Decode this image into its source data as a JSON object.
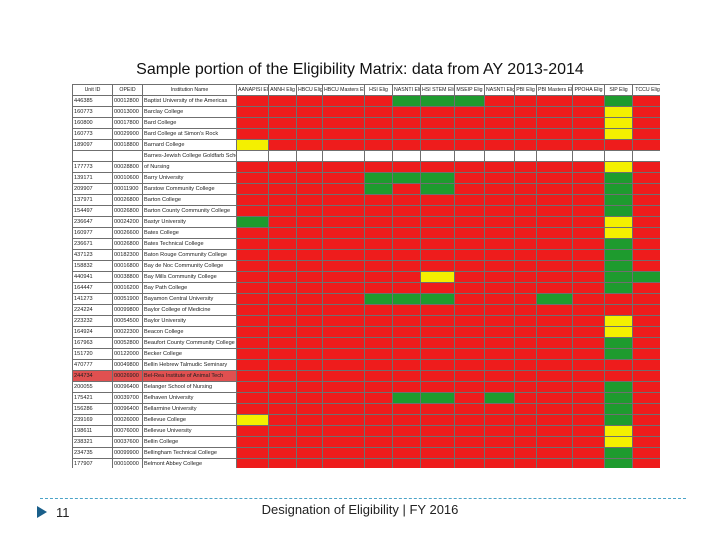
{
  "title": "Sample portion of the Eligibility Matrix:  data from AY 2013-2014",
  "footer": {
    "page_number": "11",
    "text": "Designation of Eligibility | FY 2016"
  },
  "colors": {
    "red": "#ee1c1c",
    "green": "#1e9b2e",
    "yellow": "#f4f000",
    "highlight_row": "#e05050"
  },
  "icons": {
    "footer_marker": "triangle-arrow-icon"
  },
  "matrix": {
    "headers": [
      "Unit ID",
      "OPEID",
      "Institution Name",
      "AANAPISI Elig",
      "ANNH Elig",
      "HBCU Elig",
      "HBCU Masters Elig",
      "HSI Elig",
      "NASNTI Elig",
      "HSI STEM Elig",
      "MSEIP Elig",
      "NASNTI Elig",
      "PBI Elig",
      "PBI Masters Elig",
      "PPOHA Elig",
      "SIP Elig",
      "TCCU Elig"
    ],
    "rows": [
      {
        "unit": "446385",
        "opeid": "00012800",
        "name": "Baptist University of the Americas",
        "cells": [
          "r",
          "r",
          "r",
          "r",
          "r",
          "g",
          "g",
          "g",
          "r",
          "r",
          "r",
          "r",
          "g",
          "r"
        ]
      },
      {
        "unit": "160773",
        "opeid": "00013000",
        "name": "Barclay College",
        "cells": [
          "r",
          "r",
          "r",
          "r",
          "r",
          "r",
          "r",
          "r",
          "r",
          "r",
          "r",
          "r",
          "y",
          "r"
        ]
      },
      {
        "unit": "160800",
        "opeid": "00017800",
        "name": "Bard College",
        "cells": [
          "r",
          "r",
          "r",
          "r",
          "r",
          "r",
          "r",
          "r",
          "r",
          "r",
          "r",
          "r",
          "y",
          "r"
        ]
      },
      {
        "unit": "160773",
        "opeid": "00029900",
        "name": "Bard College at Simon's Rock",
        "cells": [
          "r",
          "r",
          "r",
          "r",
          "r",
          "r",
          "r",
          "r",
          "r",
          "r",
          "r",
          "r",
          "y",
          "r"
        ]
      },
      {
        "unit": "189097",
        "opeid": "00018800",
        "name": "Barnard College",
        "cells": [
          "y",
          "r",
          "r",
          "r",
          "r",
          "r",
          "r",
          "r",
          "r",
          "r",
          "r",
          "r",
          "r",
          "r"
        ]
      },
      {
        "unit": "",
        "opeid": "",
        "name": "Barnes-Jewish College Goldfarb School",
        "cells": [
          "w",
          "w",
          "w",
          "w",
          "w",
          "w",
          "w",
          "w",
          "w",
          "w",
          "w",
          "w",
          "w",
          "w"
        ]
      },
      {
        "unit": "177773",
        "opeid": "00028800",
        "name": "of Nursing",
        "cells": [
          "r",
          "r",
          "r",
          "r",
          "r",
          "r",
          "r",
          "r",
          "r",
          "r",
          "r",
          "r",
          "y",
          "r"
        ]
      },
      {
        "unit": "139171",
        "opeid": "00010600",
        "name": "Barry University",
        "cells": [
          "r",
          "r",
          "r",
          "r",
          "g",
          "g",
          "g",
          "r",
          "r",
          "r",
          "r",
          "r",
          "g",
          "r"
        ]
      },
      {
        "unit": "209907",
        "opeid": "00011900",
        "name": "Barstow Community College",
        "cells": [
          "r",
          "r",
          "r",
          "r",
          "g",
          "r",
          "g",
          "r",
          "r",
          "r",
          "r",
          "r",
          "g",
          "r"
        ]
      },
      {
        "unit": "137971",
        "opeid": "00026800",
        "name": "Barton College",
        "cells": [
          "r",
          "r",
          "r",
          "r",
          "r",
          "r",
          "r",
          "r",
          "r",
          "r",
          "r",
          "r",
          "g",
          "r"
        ]
      },
      {
        "unit": "154497",
        "opeid": "00026800",
        "name": "Barton County Community College",
        "cells": [
          "r",
          "r",
          "r",
          "r",
          "r",
          "r",
          "r",
          "r",
          "r",
          "r",
          "r",
          "r",
          "g",
          "r"
        ]
      },
      {
        "unit": "236647",
        "opeid": "00024200",
        "name": "Bastyr University",
        "cells": [
          "g",
          "r",
          "r",
          "r",
          "r",
          "r",
          "r",
          "r",
          "r",
          "r",
          "r",
          "r",
          "y",
          "r"
        ]
      },
      {
        "unit": "160977",
        "opeid": "00026600",
        "name": "Bates College",
        "cells": [
          "r",
          "r",
          "r",
          "r",
          "r",
          "r",
          "r",
          "r",
          "r",
          "r",
          "r",
          "r",
          "y",
          "r"
        ]
      },
      {
        "unit": "236671",
        "opeid": "00026800",
        "name": "Bates Technical College",
        "cells": [
          "r",
          "r",
          "r",
          "r",
          "r",
          "r",
          "r",
          "r",
          "r",
          "r",
          "r",
          "r",
          "g",
          "r"
        ]
      },
      {
        "unit": "437123",
        "opeid": "00182300",
        "name": "Baton Rouge Community College",
        "cells": [
          "r",
          "r",
          "r",
          "r",
          "r",
          "r",
          "r",
          "r",
          "r",
          "r",
          "r",
          "r",
          "g",
          "r"
        ]
      },
      {
        "unit": "158832",
        "opeid": "00016800",
        "name": "Bay de Noc Community College",
        "cells": [
          "r",
          "r",
          "r",
          "r",
          "r",
          "r",
          "r",
          "r",
          "r",
          "r",
          "r",
          "r",
          "g",
          "r"
        ]
      },
      {
        "unit": "440941",
        "opeid": "00038800",
        "name": "Bay Mills Community College",
        "cells": [
          "r",
          "r",
          "r",
          "r",
          "r",
          "r",
          "y",
          "r",
          "r",
          "r",
          "r",
          "r",
          "g",
          "g"
        ]
      },
      {
        "unit": "164447",
        "opeid": "00016200",
        "name": "Bay Path College",
        "cells": [
          "r",
          "r",
          "r",
          "r",
          "r",
          "r",
          "r",
          "r",
          "r",
          "r",
          "r",
          "r",
          "g",
          "r"
        ]
      },
      {
        "unit": "141273",
        "opeid": "00051900",
        "name": "Bayamon Central University",
        "cells": [
          "r",
          "r",
          "r",
          "r",
          "g",
          "g",
          "g",
          "r",
          "r",
          "r",
          "g",
          "r",
          "r",
          "r"
        ]
      },
      {
        "unit": "224224",
        "opeid": "00099800",
        "name": "Baylor College of Medicine",
        "cells": [
          "r",
          "r",
          "r",
          "r",
          "r",
          "r",
          "r",
          "r",
          "r",
          "r",
          "r",
          "r",
          "r",
          "r"
        ]
      },
      {
        "unit": "223232",
        "opeid": "00054500",
        "name": "Baylor University",
        "cells": [
          "r",
          "r",
          "r",
          "r",
          "r",
          "r",
          "r",
          "r",
          "r",
          "r",
          "r",
          "r",
          "y",
          "r"
        ]
      },
      {
        "unit": "164924",
        "opeid": "00022300",
        "name": "Beacon College",
        "cells": [
          "r",
          "r",
          "r",
          "r",
          "r",
          "r",
          "r",
          "r",
          "r",
          "r",
          "r",
          "r",
          "y",
          "r"
        ]
      },
      {
        "unit": "167963",
        "opeid": "00052800",
        "name": "Beaufort County Community College",
        "cells": [
          "r",
          "r",
          "r",
          "r",
          "r",
          "r",
          "r",
          "r",
          "r",
          "r",
          "r",
          "r",
          "g",
          "r"
        ]
      },
      {
        "unit": "151720",
        "opeid": "00122000",
        "name": "Becker College",
        "cells": [
          "r",
          "r",
          "r",
          "r",
          "r",
          "r",
          "r",
          "r",
          "r",
          "r",
          "r",
          "r",
          "g",
          "r"
        ]
      },
      {
        "unit": "470777",
        "opeid": "00049800",
        "name": "Bellin Hebrew Talmudic Seminary",
        "cells": [
          "r",
          "r",
          "r",
          "r",
          "r",
          "r",
          "r",
          "r",
          "r",
          "r",
          "r",
          "r",
          "r",
          "r"
        ]
      },
      {
        "unit": "244734",
        "opeid": "00026900",
        "name": "Bel-Rea Institute of Animal Tech",
        "hl": true,
        "cells": [
          "r",
          "r",
          "r",
          "r",
          "r",
          "r",
          "r",
          "r",
          "r",
          "r",
          "r",
          "r",
          "r",
          "r"
        ]
      },
      {
        "unit": "200055",
        "opeid": "00096400",
        "name": "Belanger School of Nursing",
        "cells": [
          "r",
          "r",
          "r",
          "r",
          "r",
          "r",
          "r",
          "r",
          "r",
          "r",
          "r",
          "r",
          "g",
          "r"
        ]
      },
      {
        "unit": "175421",
        "opeid": "00039700",
        "name": "Belhaven University",
        "cells": [
          "r",
          "r",
          "r",
          "r",
          "r",
          "g",
          "g",
          "r",
          "g",
          "r",
          "r",
          "r",
          "g",
          "r"
        ]
      },
      {
        "unit": "156286",
        "opeid": "00096400",
        "name": "Bellarmine University",
        "cells": [
          "r",
          "r",
          "r",
          "r",
          "r",
          "r",
          "r",
          "r",
          "r",
          "r",
          "r",
          "r",
          "g",
          "r"
        ]
      },
      {
        "unit": "239169",
        "opeid": "00026000",
        "name": "Bellevue College",
        "cells": [
          "y",
          "r",
          "r",
          "r",
          "r",
          "r",
          "r",
          "r",
          "r",
          "r",
          "r",
          "r",
          "g",
          "r"
        ]
      },
      {
        "unit": "198611",
        "opeid": "00076000",
        "name": "Bellevue University",
        "cells": [
          "r",
          "r",
          "r",
          "r",
          "r",
          "r",
          "r",
          "r",
          "r",
          "r",
          "r",
          "r",
          "y",
          "r"
        ]
      },
      {
        "unit": "238321",
        "opeid": "00037600",
        "name": "Bellin College",
        "cells": [
          "r",
          "r",
          "r",
          "r",
          "r",
          "r",
          "r",
          "r",
          "r",
          "r",
          "r",
          "r",
          "y",
          "r"
        ]
      },
      {
        "unit": "234735",
        "opeid": "00099900",
        "name": "Bellingham Technical College",
        "cells": [
          "r",
          "r",
          "r",
          "r",
          "r",
          "r",
          "r",
          "r",
          "r",
          "r",
          "r",
          "r",
          "g",
          "r"
        ]
      },
      {
        "unit": "177907",
        "opeid": "00010000",
        "name": "Belmont Abbey College",
        "cells": [
          "r",
          "r",
          "r",
          "r",
          "r",
          "r",
          "r",
          "r",
          "r",
          "r",
          "r",
          "r",
          "g",
          "r"
        ]
      }
    ]
  }
}
